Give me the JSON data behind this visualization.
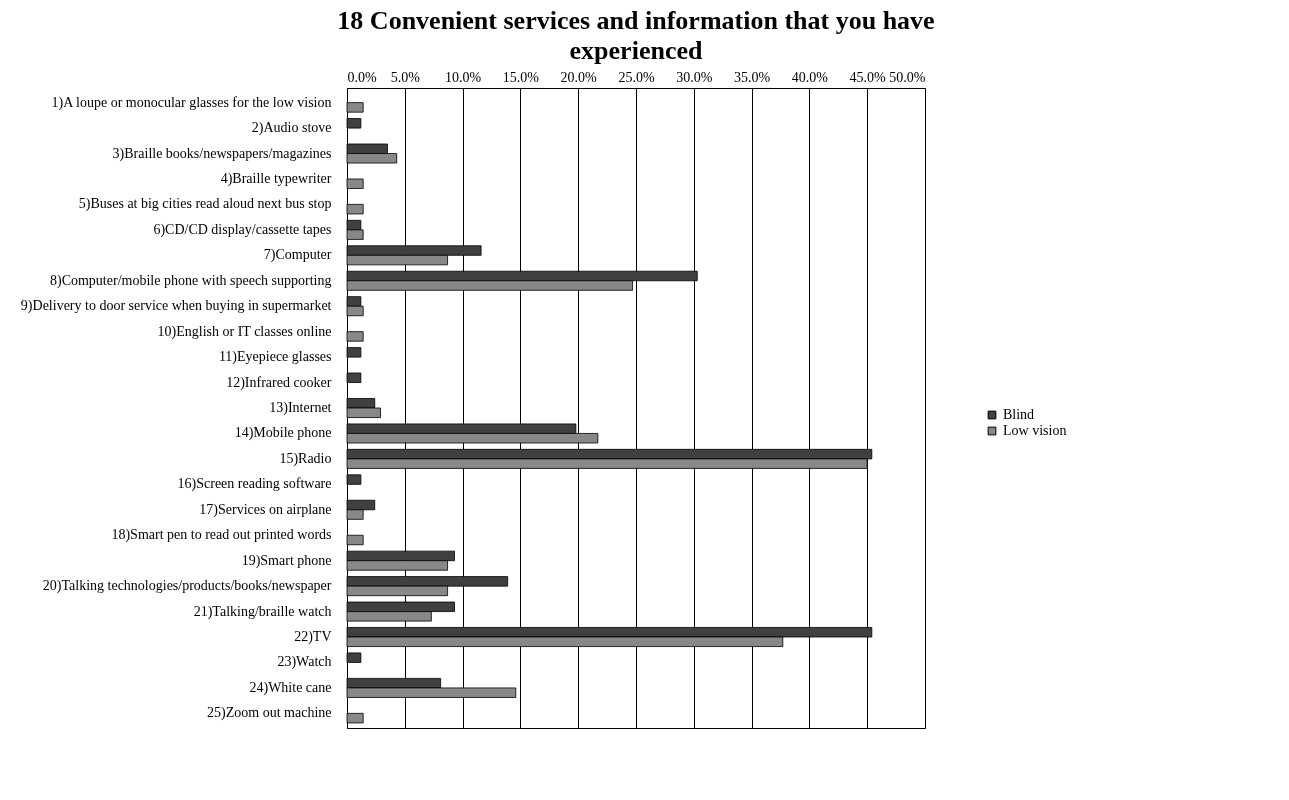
{
  "chart_data": {
    "type": "bar",
    "orientation": "horizontal",
    "title": "18 Convenient services and information that you have experienced",
    "categories": [
      "1)A loupe or monocular glasses for the low vision",
      "2)Audio stove",
      "3)Braille books/newspapers/magazines",
      "4)Braille typewriter",
      "5)Buses at big cities read aloud next bus stop",
      "6)CD/CD display/cassette tapes",
      "7)Computer",
      "8)Computer/mobile phone with speech supporting",
      "9)Delivery to door service when buying in supermarket",
      "10)English or IT classes online",
      "11)Eyepiece glasses",
      "12)Infrared cooker",
      "13)Internet",
      "14)Mobile phone",
      "15)Radio",
      "16)Screen reading software",
      "17)Services on airplane",
      "18)Smart pen to read out printed words",
      "19)Smart phone",
      "20)Talking technologies/products/books/newspaper",
      "21)Talking/braille watch",
      "22)TV",
      "23)Watch",
      "24)White cane",
      "25)Zoom out machine"
    ],
    "series": [
      {
        "name": "Blind",
        "color": "#404040",
        "values": [
          null,
          1.2,
          3.5,
          null,
          null,
          1.2,
          11.6,
          30.3,
          1.2,
          null,
          1.2,
          1.2,
          2.4,
          19.8,
          45.4,
          1.2,
          2.4,
          null,
          9.3,
          13.9,
          9.3,
          45.4,
          1.2,
          8.1,
          null
        ]
      },
      {
        "name": "Low vision",
        "color": "#888888",
        "values": [
          1.4,
          null,
          4.3,
          1.4,
          1.4,
          1.4,
          8.7,
          24.7,
          1.4,
          1.4,
          null,
          null,
          2.9,
          21.7,
          45.0,
          null,
          1.4,
          1.4,
          8.7,
          8.7,
          7.3,
          37.7,
          null,
          14.6,
          1.4
        ]
      }
    ],
    "xlim": [
      0,
      50
    ],
    "xticks": [
      {
        "value": 0,
        "label": "0.0%"
      },
      {
        "value": 5,
        "label": "5.0%"
      },
      {
        "value": 10,
        "label": "10.0%"
      },
      {
        "value": 15,
        "label": "15.0%"
      },
      {
        "value": 20,
        "label": "20.0%"
      },
      {
        "value": 25,
        "label": "25.0%"
      },
      {
        "value": 30,
        "label": "30.0%"
      },
      {
        "value": 35,
        "label": "35.0%"
      },
      {
        "value": 40,
        "label": "40.0%"
      },
      {
        "value": 45,
        "label": "45.0%"
      },
      {
        "value": 50,
        "label": "50.0%"
      }
    ],
    "grid": "x",
    "legend": "right"
  }
}
